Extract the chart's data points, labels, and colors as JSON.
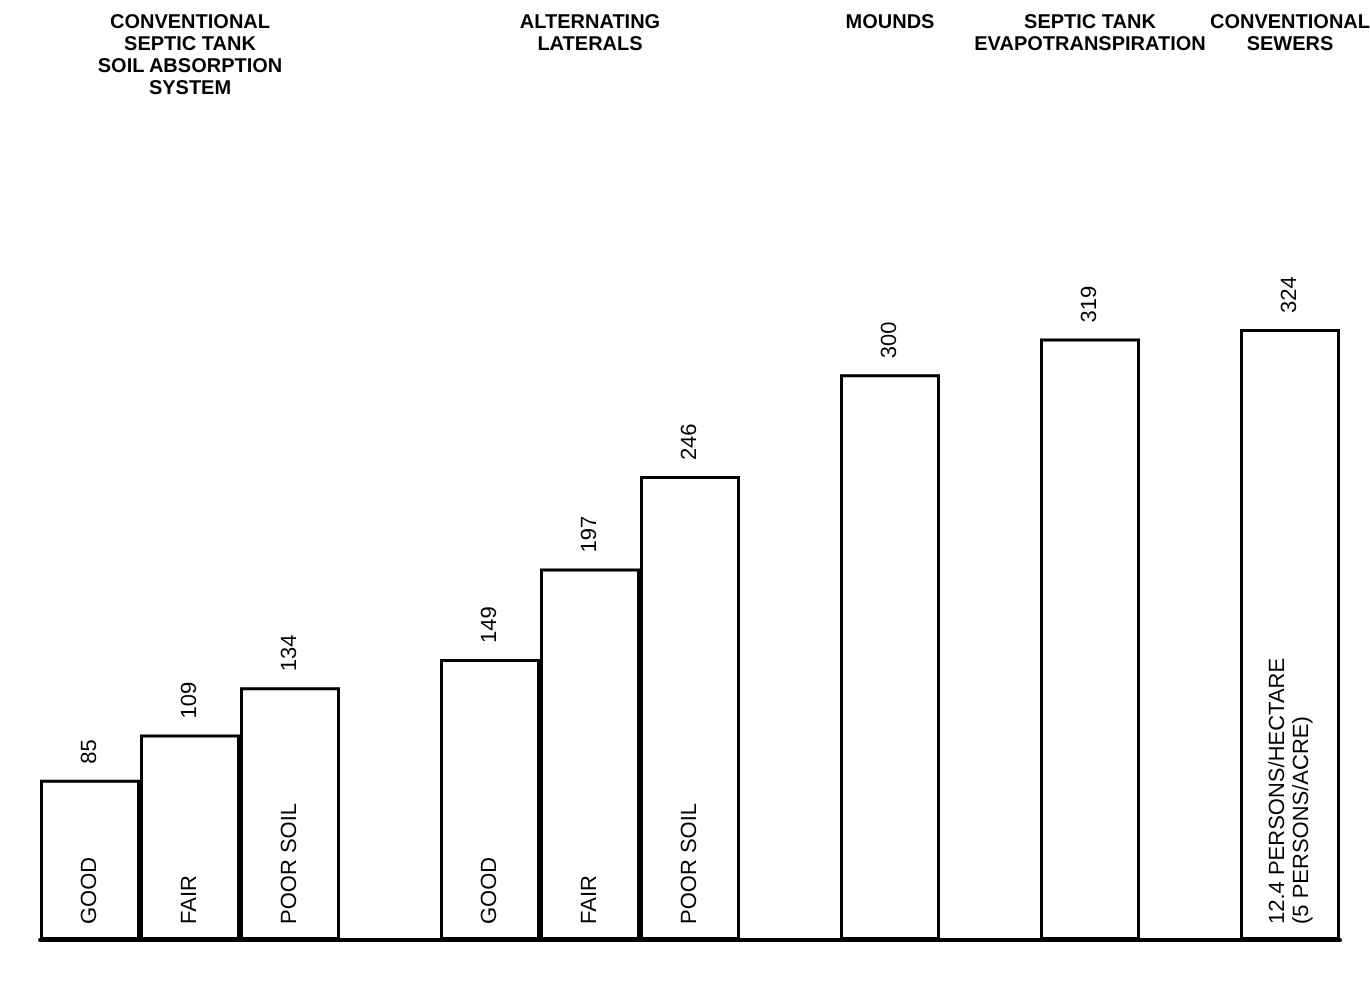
{
  "chart_data": {
    "type": "bar",
    "categories": [
      "GOOD",
      "FAIR",
      "POOR SOIL",
      null,
      "GOOD",
      "FAIR",
      "POOR SOIL",
      null,
      null,
      null,
      null,
      null,
      "12.4 PERSONS/HECTARE\n(5 PERSONS/ACRE)"
    ],
    "values": [
      85,
      109,
      134,
      null,
      149,
      197,
      246,
      null,
      300,
      null,
      319,
      null,
      324
    ],
    "color": "#ffffff",
    "data_labels": true,
    "annotations": [
      "CONVENTIONAL\nSEPTIC TANK\nSOIL ABSORPTION\nSYSTEM",
      "ALTERNATING\nLATERALS",
      "MOUNDS",
      "SEPTIC TANK\nEVAPOTRANSPIRATION",
      "CONVENTIONAL\nSEWERS"
    ]
  }
}
